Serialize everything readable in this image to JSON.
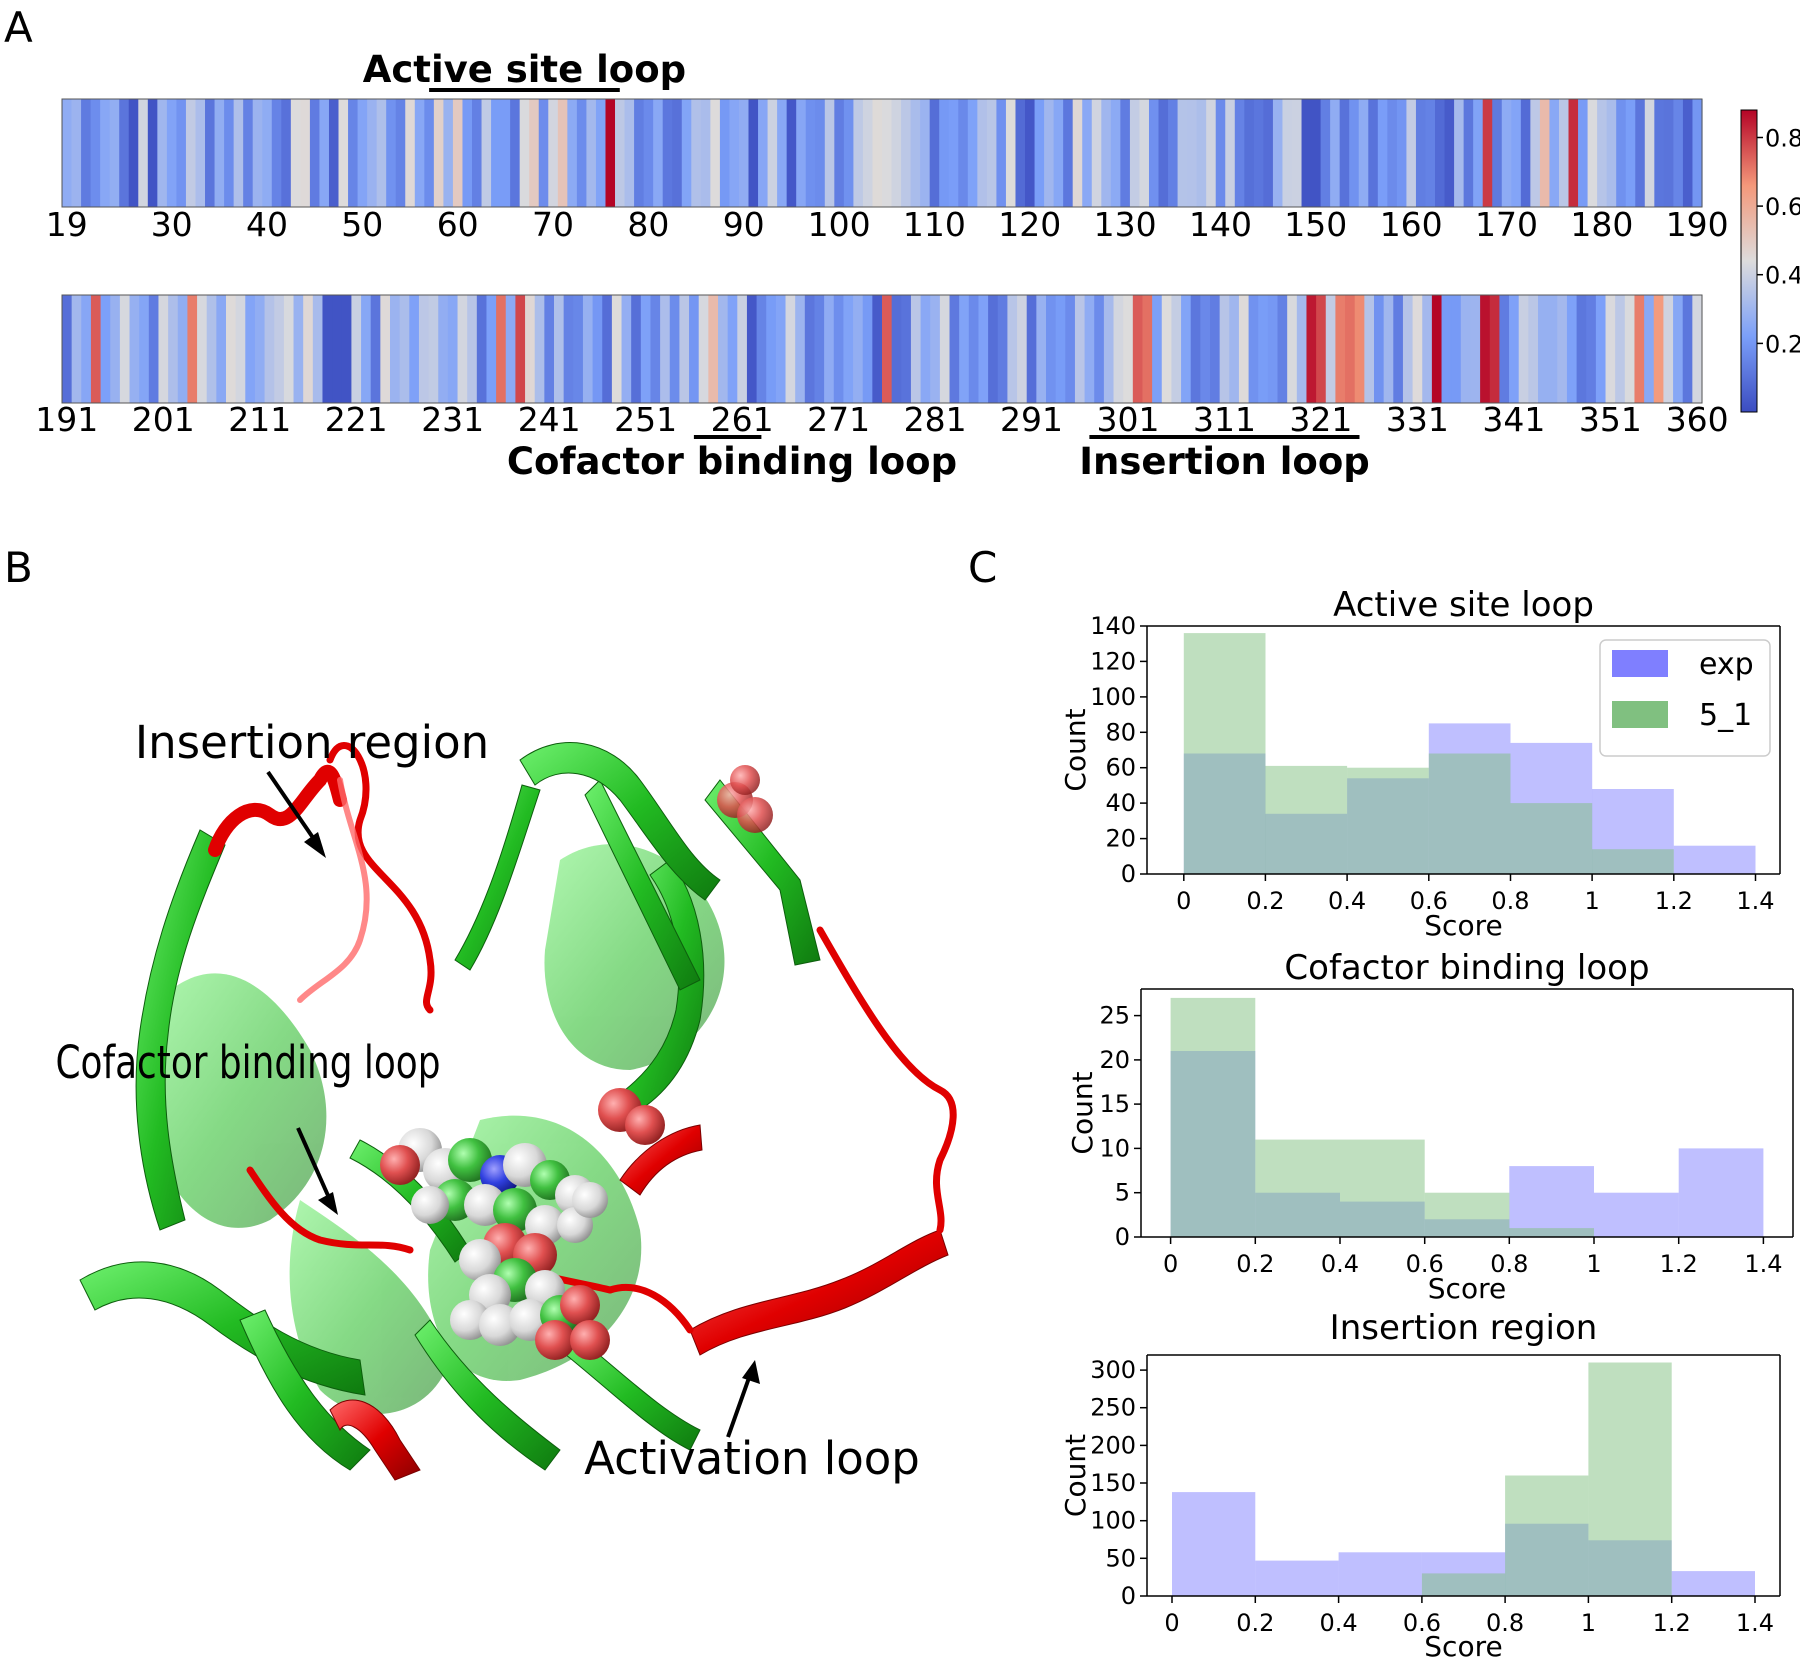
{
  "panel_labels": {
    "a": "A",
    "b": "B",
    "c": "C"
  },
  "heatmap": {
    "row1_start": 19,
    "row1_end": 190,
    "row2_start": 191,
    "row2_end": 360,
    "row1_ticks": [
      "19",
      "30",
      "40",
      "50",
      "60",
      "70",
      "80",
      "90",
      "100",
      "110",
      "120",
      "130",
      "140",
      "150",
      "160",
      "170",
      "180",
      "190"
    ],
    "row2_ticks": [
      "191",
      "201",
      "211",
      "221",
      "231",
      "241",
      "251",
      "261",
      "271",
      "281",
      "291",
      "301",
      "311",
      "321",
      "331",
      "341",
      "351",
      "360"
    ],
    "colorbar": {
      "ticks": [
        "0.8",
        "0.6",
        "0.4",
        "0.2"
      ],
      "colormap": "coolwarm",
      "min": 0.0,
      "max": 0.88
    },
    "regions": [
      {
        "label": "Active site loop",
        "row": 1,
        "start": 57,
        "end": 77
      },
      {
        "label": "Cofactor binding loop",
        "row": 2,
        "start": 256,
        "end": 263
      },
      {
        "label": "Insertion loop",
        "row": 2,
        "start": 297,
        "end": 325
      }
    ]
  },
  "structure": {
    "annotations": [
      "Insertion region",
      "Cofactor binding loop",
      "Activation loop"
    ],
    "colors": {
      "helix_green": "#2ecc2e",
      "loop_red": "#e00000"
    }
  },
  "chart_data": [
    {
      "type": "bar",
      "title": "Active site loop",
      "xlabel": "Score",
      "ylabel": "Count",
      "bin_edges": [
        0,
        0.2,
        0.4,
        0.6,
        0.8,
        1.0,
        1.2,
        1.4
      ],
      "x_ticks": [
        "0",
        "0.2",
        "0.4",
        "0.6",
        "0.8",
        "1",
        "1.2",
        "1.4"
      ],
      "y_ticks": [
        "0",
        "20",
        "40",
        "60",
        "80",
        "100",
        "120",
        "140"
      ],
      "ylim": [
        0,
        140
      ],
      "legend": "upper-right",
      "series": [
        {
          "name": "exp",
          "color": "#7f7fff",
          "values": [
            68,
            34,
            54,
            85,
            74,
            48,
            16
          ]
        },
        {
          "name": "5_1",
          "color": "#80c080",
          "values": [
            136,
            61,
            60,
            68,
            40,
            14,
            0
          ]
        }
      ]
    },
    {
      "type": "bar",
      "title": "Cofactor binding loop",
      "xlabel": "Score",
      "ylabel": "Count",
      "bin_edges": [
        0,
        0.2,
        0.4,
        0.6,
        0.8,
        1.0,
        1.2,
        1.4
      ],
      "x_ticks": [
        "0",
        "0.2",
        "0.4",
        "0.6",
        "0.8",
        "1",
        "1.2",
        "1.4"
      ],
      "y_ticks": [
        "0",
        "5",
        "10",
        "15",
        "20",
        "25"
      ],
      "ylim": [
        0,
        28
      ],
      "series": [
        {
          "name": "exp",
          "color": "#7f7fff",
          "values": [
            21,
            5,
            4,
            2,
            8,
            5,
            10
          ]
        },
        {
          "name": "5_1",
          "color": "#80c080",
          "values": [
            27,
            11,
            11,
            5,
            1,
            0,
            0
          ]
        }
      ]
    },
    {
      "type": "bar",
      "title": "Insertion region",
      "xlabel": "Score",
      "ylabel": "Count",
      "bin_edges": [
        0,
        0.2,
        0.4,
        0.6,
        0.8,
        1.0,
        1.2,
        1.4
      ],
      "x_ticks": [
        "0",
        "0.2",
        "0.4",
        "0.6",
        "0.8",
        "1",
        "1.2",
        "1.4"
      ],
      "y_ticks": [
        "0",
        "50",
        "100",
        "150",
        "200",
        "250",
        "300"
      ],
      "ylim": [
        0,
        320
      ],
      "series": [
        {
          "name": "exp",
          "color": "#7f7fff",
          "values": [
            138,
            47,
            58,
            58,
            96,
            74,
            33
          ]
        },
        {
          "name": "5_1",
          "color": "#80c080",
          "values": [
            0,
            0,
            0,
            30,
            160,
            310,
            0
          ]
        }
      ]
    }
  ]
}
